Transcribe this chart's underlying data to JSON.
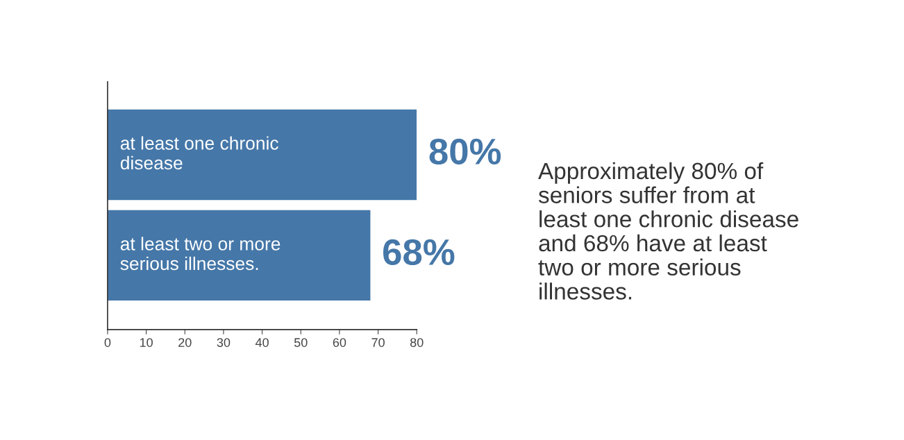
{
  "chart_data": {
    "type": "bar",
    "orientation": "horizontal",
    "categories": [
      "at least one chronic disease",
      "at least two or more serious illnesses."
    ],
    "values": [
      80,
      68
    ],
    "color": "#4577a8",
    "value_labels": [
      "80%",
      "68%"
    ],
    "xlim": [
      0,
      80
    ],
    "xticks": [
      0,
      10,
      20,
      30,
      40,
      50,
      60,
      70,
      80
    ],
    "grid": false,
    "legend": false,
    "annotations": [
      "Approximately 80% of seniors suffer from at least one chronic disease and 68% have at least two or more serious illnesses."
    ]
  }
}
